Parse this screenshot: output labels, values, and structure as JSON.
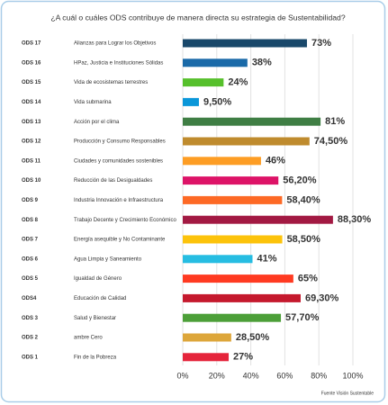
{
  "chart_data": {
    "type": "bar",
    "orientation": "horizontal",
    "title": "¿A cuál o cuáles ODS contribuye de manera directa su estrategia de Sustentabilidad?",
    "codes": [
      "ODS 17",
      "ODS 16",
      "ODS 15",
      "ODS 14",
      "ODS 13",
      "ODS 12",
      "ODS 11",
      "ODS 10",
      "ODS 9",
      "ODS 8",
      "ODS 7",
      "ODS 6",
      "ODS 5",
      "ODS4",
      "ODS 3",
      "ODS 2",
      "ODS 1"
    ],
    "categories": [
      "Alianzas para Lograr los Objetivos",
      "HPaz, Justicia e Instituciones Sólidas",
      "Vida de ecosistemas terrestres",
      "Vida submarina",
      "Acción por el clima",
      "Producción y Consumo Responsables",
      "Ciudades y comunidades sostenibles",
      "Reducción de las Desigualdades",
      "Industria Innovación e Infraestructura",
      "Trabajo Decente y Crecimiento Económico",
      "Energía asequible y No Contaminante",
      "Agua Limpia y Saneamiento",
      "Igualdad de Género",
      "Educación de Calidad",
      "Salud y Bienestar",
      "ambre Cero",
      "Fin de la Pobreza"
    ],
    "values": [
      73,
      38,
      24,
      9.5,
      81,
      74.5,
      46,
      56.2,
      58.4,
      88.3,
      58.5,
      41,
      65,
      69.3,
      57.7,
      28.5,
      27
    ],
    "value_labels": [
      "73%",
      "38%",
      "24%",
      "9,50%",
      "81%",
      "74,50%",
      "46%",
      "56,20%",
      "58,40%",
      "88,30%",
      "58,50%",
      "41%",
      "65%",
      "69,30%",
      "57,70%",
      "28,50%",
      "27%"
    ],
    "colors": [
      "#19486a",
      "#1a6aa8",
      "#56c02b",
      "#0a97d9",
      "#3f7e44",
      "#bf8b2e",
      "#fd9d24",
      "#dd1367",
      "#fd6925",
      "#a21942",
      "#fcc30b",
      "#26bde2",
      "#ff3a21",
      "#c5192d",
      "#4c9f38",
      "#dda63a",
      "#e5243b"
    ],
    "xlim": [
      0,
      100
    ],
    "xticks": [
      {
        "value": 0,
        "label": "0%"
      },
      {
        "value": 20,
        "label": "20%"
      },
      {
        "value": 40,
        "label": "40%"
      },
      {
        "value": 60,
        "label": "60%"
      },
      {
        "value": 80,
        "label": "80%"
      },
      {
        "value": 100,
        "label": "100%"
      }
    ],
    "grid": true,
    "source": "Fuente Visión Sustentable"
  }
}
